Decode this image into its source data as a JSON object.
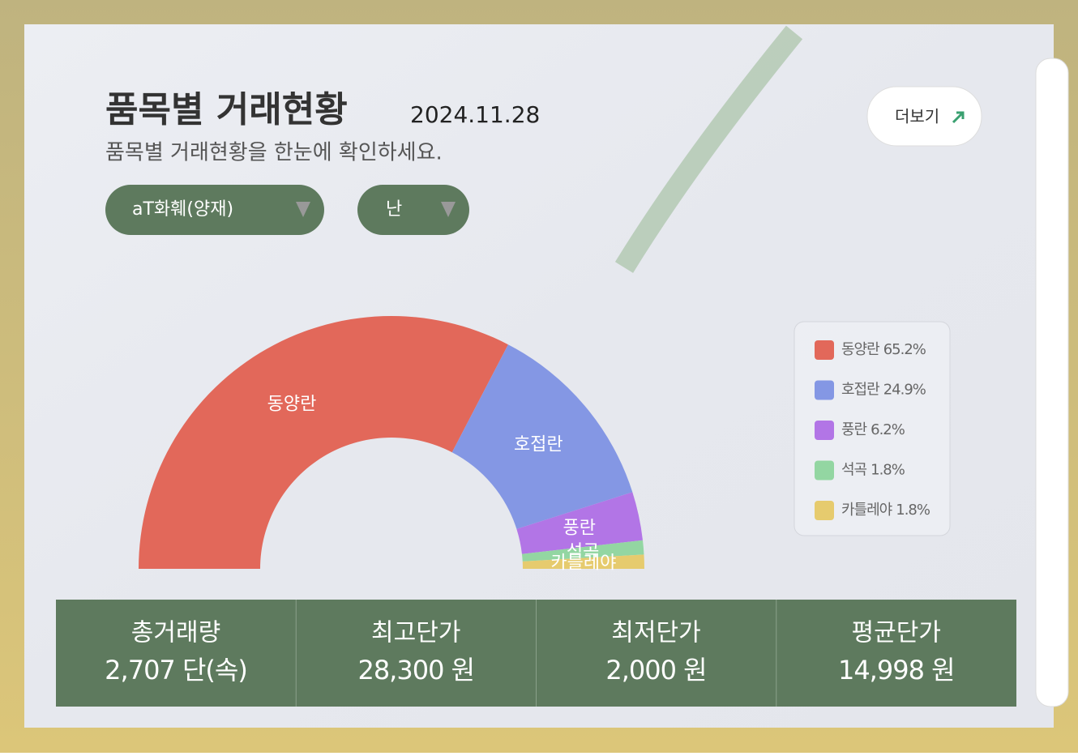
{
  "header": {
    "title": "품목별 거래현황",
    "date": "2024.11.28",
    "subtitle": "품목별 거래현황을 한눈에 확인하세요."
  },
  "filters": [
    "aT화훼(양재)",
    "난"
  ],
  "more_button": "더보기",
  "chart_data": {
    "type": "half-donut",
    "categories": [
      "동양란",
      "호접란",
      "풍란",
      "석곡",
      "카틀레야"
    ],
    "values": [
      65.2,
      24.9,
      6.2,
      1.8,
      1.8
    ],
    "value_labels": [
      "65.2%",
      "24.9%",
      "6.2%",
      "1.8%",
      "1.8%"
    ],
    "colors": [
      "#e2685a",
      "#8497e4",
      "#b275e6",
      "#93d6a2",
      "#e6cb6e"
    ],
    "legend": "right"
  },
  "stats": [
    {
      "label": "총거래량",
      "value": "2,707 단(속)"
    },
    {
      "label": "최고단가",
      "value": "28,300 원"
    },
    {
      "label": "최저단가",
      "value": "2,000 원"
    },
    {
      "label": "평균단가",
      "value": "14,998 원"
    }
  ]
}
